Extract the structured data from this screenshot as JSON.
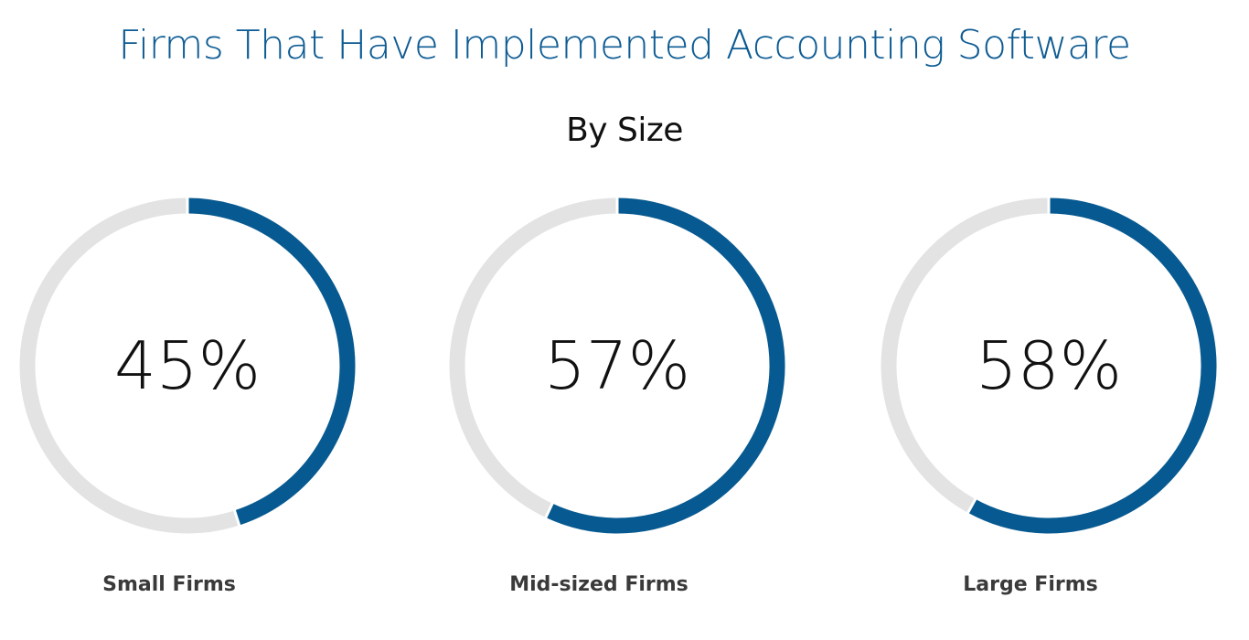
{
  "title": "Firms That Have Implemented Accounting Software",
  "subtitle": "By Size",
  "colors": {
    "title": "#0d5b93",
    "subtitle": "#111111",
    "arc": "#075a91",
    "track": "#e3e3e3",
    "value_text": "#111111",
    "label_text": "#3a3a3a"
  },
  "chart_data": {
    "type": "pie",
    "variant": "donut-progress",
    "categories": [
      "Small Firms",
      "Mid-sized Firms",
      "Large Firms"
    ],
    "values": [
      45,
      57,
      58
    ],
    "value_labels": [
      "45%",
      "57%",
      "58%"
    ],
    "unit": "%",
    "max": 100,
    "title": "Firms That Have Implemented Accounting Software",
    "subtitle": "By Size"
  }
}
